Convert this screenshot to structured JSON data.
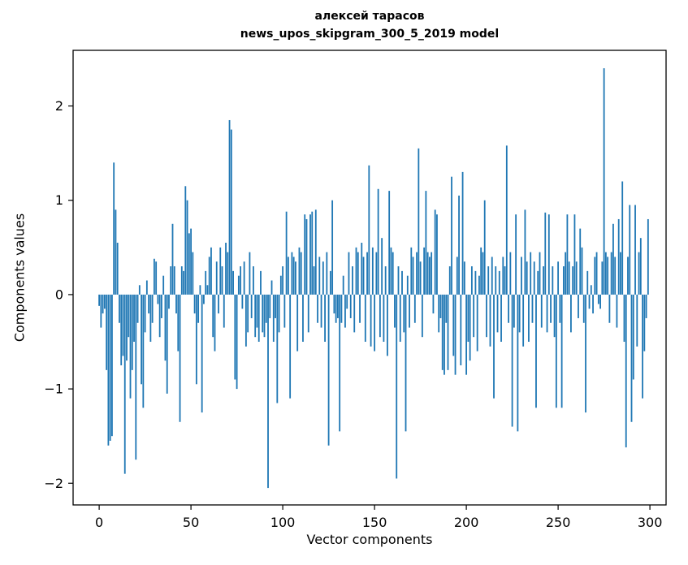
{
  "chart_data": {
    "type": "bar",
    "title_line1": "алексей тарасов",
    "title_line2": "news_upos_skipgram_300_5_2019 model",
    "xlabel": "Vector components",
    "ylabel": "Components values",
    "xlim": [
      -14.2,
      308.8
    ],
    "ylim": [
      -2.23,
      2.59
    ],
    "xticks": [
      0,
      50,
      100,
      150,
      200,
      250,
      300
    ],
    "yticks": [
      -2,
      -1,
      0,
      1,
      2
    ],
    "bar_color": "#1f77b4",
    "bar_width": 0.8,
    "legend": "none",
    "grid": false,
    "values": [
      -0.12,
      -0.35,
      -0.2,
      -0.15,
      -0.8,
      -1.6,
      -1.55,
      -1.5,
      1.4,
      0.9,
      0.55,
      -0.3,
      -0.75,
      -0.65,
      -1.9,
      -0.7,
      -0.45,
      -1.1,
      -0.8,
      -0.5,
      -1.75,
      -0.3,
      0.1,
      -0.95,
      -1.2,
      -0.4,
      0.15,
      -0.2,
      -0.5,
      -0.3,
      0.38,
      0.35,
      -0.1,
      -0.45,
      -0.25,
      0.2,
      -0.7,
      -1.05,
      -0.15,
      0.3,
      0.75,
      0.3,
      -0.2,
      -0.6,
      -1.35,
      0.3,
      0.25,
      1.15,
      1.0,
      0.65,
      0.7,
      0.45,
      -0.2,
      -0.95,
      -0.3,
      0.1,
      -1.25,
      -0.1,
      0.25,
      0.1,
      0.4,
      0.5,
      -0.45,
      -0.6,
      0.35,
      -0.2,
      0.5,
      0.3,
      -0.35,
      0.55,
      0.45,
      1.85,
      1.75,
      0.25,
      -0.9,
      -1.0,
      0.2,
      0.3,
      -0.15,
      0.35,
      -0.55,
      -0.4,
      0.45,
      -0.25,
      0.3,
      -0.45,
      -0.35,
      -0.5,
      0.25,
      -0.4,
      -0.45,
      -0.3,
      -2.05,
      -0.25,
      0.15,
      -0.5,
      -0.25,
      -1.15,
      -0.4,
      0.2,
      0.3,
      -0.35,
      0.88,
      0.4,
      -1.1,
      0.45,
      0.4,
      0.35,
      -0.6,
      0.5,
      0.45,
      -0.5,
      0.85,
      0.8,
      -0.4,
      0.85,
      0.88,
      0.3,
      0.9,
      -0.3,
      0.4,
      -0.35,
      0.35,
      -0.5,
      0.45,
      -1.6,
      0.25,
      1.0,
      -0.2,
      -0.3,
      -0.25,
      -1.45,
      -0.3,
      0.2,
      -0.35,
      -0.15,
      0.45,
      -0.25,
      0.3,
      -0.4,
      0.5,
      0.45,
      -0.3,
      0.55,
      0.4,
      -0.5,
      0.45,
      1.37,
      -0.55,
      0.5,
      -0.6,
      0.45,
      1.12,
      -0.45,
      0.6,
      -0.5,
      0.3,
      -0.65,
      1.1,
      0.5,
      0.45,
      -0.35,
      -1.95,
      0.3,
      -0.5,
      0.25,
      -0.4,
      -1.45,
      0.2,
      -0.35,
      0.5,
      0.4,
      -0.3,
      0.45,
      1.55,
      0.35,
      -0.45,
      0.5,
      1.1,
      0.45,
      0.4,
      0.45,
      -0.2,
      0.9,
      0.85,
      -0.4,
      -0.25,
      -0.8,
      -0.85,
      -0.3,
      -0.8,
      0.3,
      1.25,
      -0.65,
      -0.85,
      0.4,
      1.05,
      -0.75,
      1.3,
      0.35,
      -0.85,
      -0.5,
      -0.7,
      0.3,
      -0.45,
      0.25,
      -0.6,
      0.2,
      0.5,
      0.45,
      1.0,
      -0.45,
      0.3,
      -0.55,
      0.4,
      -1.1,
      0.3,
      -0.4,
      0.25,
      -0.5,
      0.4,
      0.3,
      1.58,
      -0.3,
      0.45,
      -1.4,
      -0.35,
      0.85,
      -1.45,
      -0.4,
      0.4,
      -0.55,
      0.9,
      0.35,
      -0.5,
      0.45,
      -0.3,
      0.35,
      -1.2,
      0.25,
      0.45,
      -0.35,
      0.3,
      0.87,
      -0.4,
      0.85,
      -0.3,
      0.3,
      -0.45,
      -1.2,
      0.35,
      -0.3,
      -1.2,
      0.3,
      0.45,
      0.85,
      0.35,
      -0.4,
      0.3,
      0.85,
      0.35,
      -0.25,
      0.7,
      0.5,
      -0.3,
      -1.25,
      0.25,
      -0.15,
      0.1,
      -0.2,
      0.4,
      0.45,
      -0.1,
      -0.15,
      0.35,
      2.4,
      0.45,
      0.4,
      -0.3,
      0.45,
      0.75,
      0.4,
      -0.35,
      0.8,
      0.45,
      1.2,
      -0.5,
      -1.62,
      0.4,
      0.95,
      -1.35,
      -0.9,
      0.95,
      -0.55,
      0.45,
      0.6,
      -1.1,
      -0.6,
      -0.25,
      0.8
    ]
  }
}
